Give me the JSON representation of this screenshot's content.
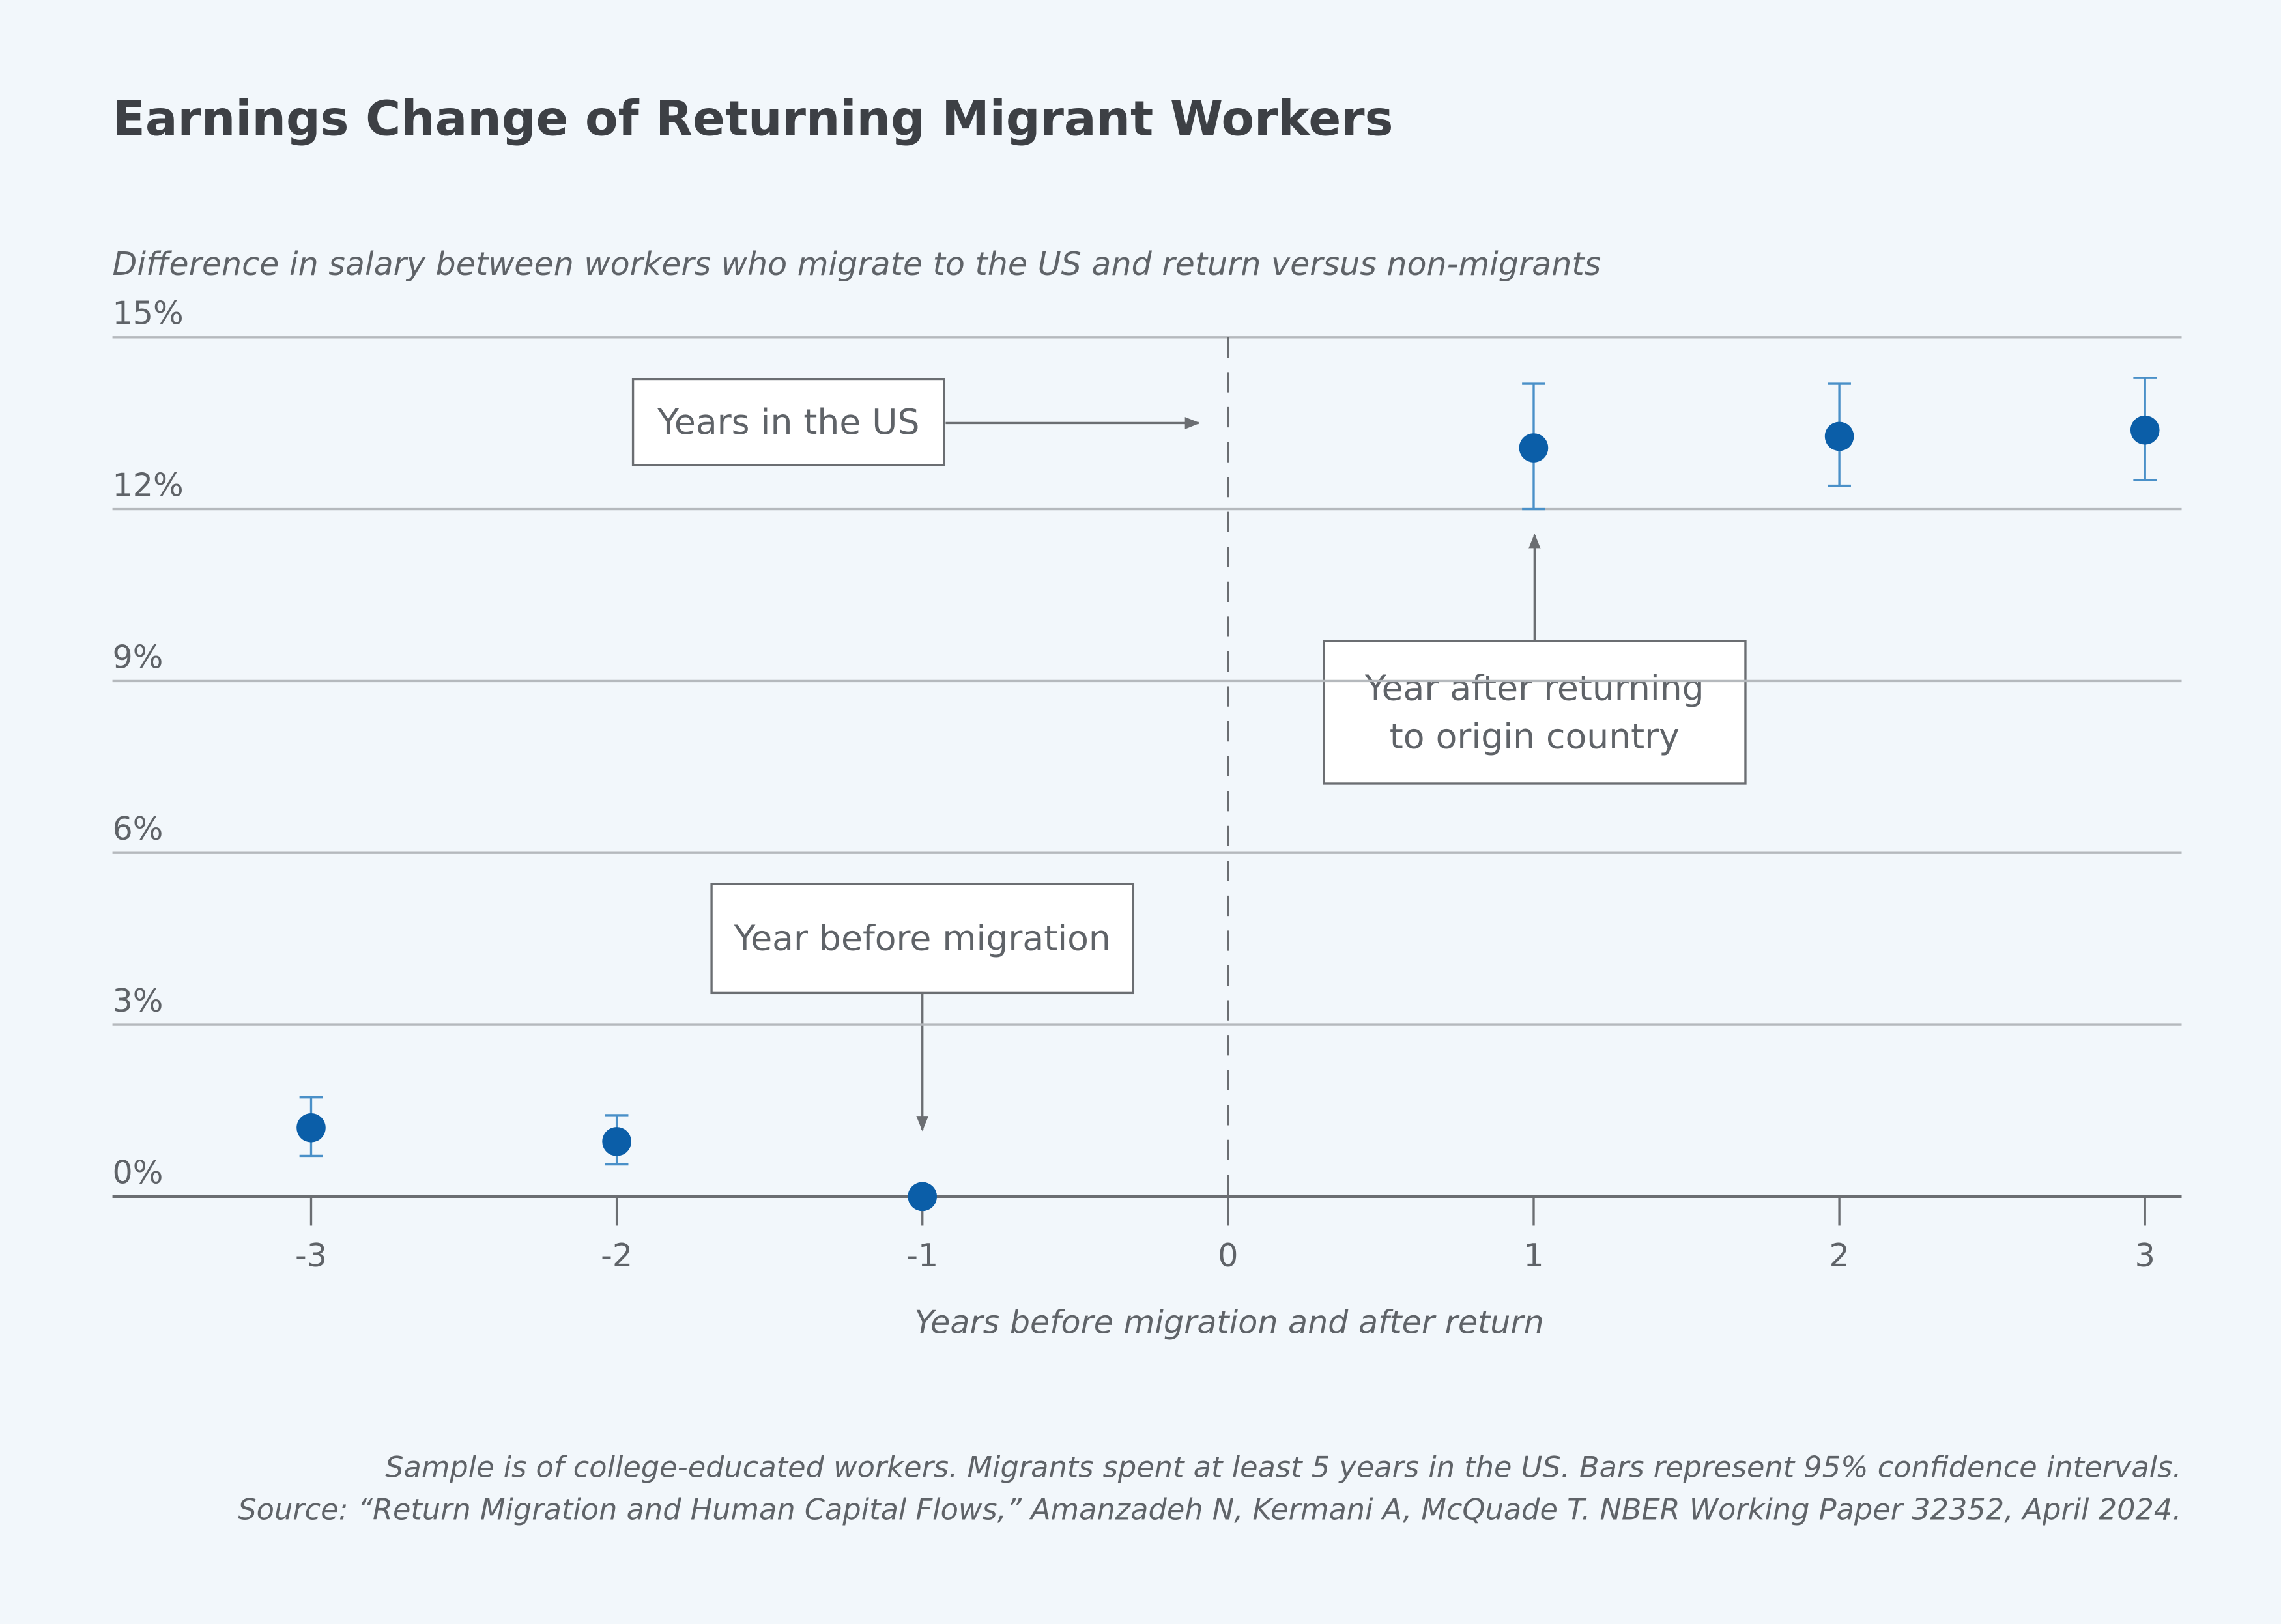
{
  "chart_data": {
    "type": "scatter",
    "title": "Earnings Change of Returning Migrant Workers",
    "subtitle": "Difference in salary between workers who migrate to the US and return versus non-migrants",
    "x_label": "Years before migration and after return",
    "x": [
      -3,
      -2,
      -1,
      1,
      2,
      3
    ],
    "series": [
      {
        "color": "#0b5ea8",
        "error_color": "#4a90c8",
        "values": [
          1.2,
          0.96,
          0,
          13.07,
          13.27,
          13.38
        ],
        "ci_low": [
          0.71,
          0.56,
          null,
          12.0,
          12.41,
          12.51
        ],
        "ci_high": [
          1.73,
          1.42,
          null,
          14.19,
          14.19,
          14.29
        ]
      }
    ],
    "xlim": [
      -3.65,
      3.12
    ],
    "xticks": [
      -3,
      -2,
      -1,
      0,
      1,
      2,
      3
    ],
    "ylim": [
      0,
      15
    ],
    "yticks": [
      {
        "value": 0,
        "label": "0%"
      },
      {
        "value": 3,
        "label": "3%"
      },
      {
        "value": 6,
        "label": "6%"
      },
      {
        "value": 9,
        "label": "9%"
      },
      {
        "value": 12,
        "label": "12%"
      },
      {
        "value": 15,
        "label": "15%"
      }
    ],
    "grid": true,
    "reference_line_x": 0,
    "annotations": [
      {
        "text": [
          "Years in the US"
        ]
      },
      {
        "text": [
          "Year after returning",
          "to origin country"
        ]
      },
      {
        "text": [
          "Year before migration"
        ]
      }
    ],
    "notes": [
      "Sample is of college-educated workers. Migrants spent at least 5 years in the US. Bars represent 95% confidence intervals.",
      "Source: “Return Migration and Human Capital Flows,” Amanzadeh N, Kermani A, McQuade T. NBER Working Paper 32352, April 2024."
    ]
  }
}
